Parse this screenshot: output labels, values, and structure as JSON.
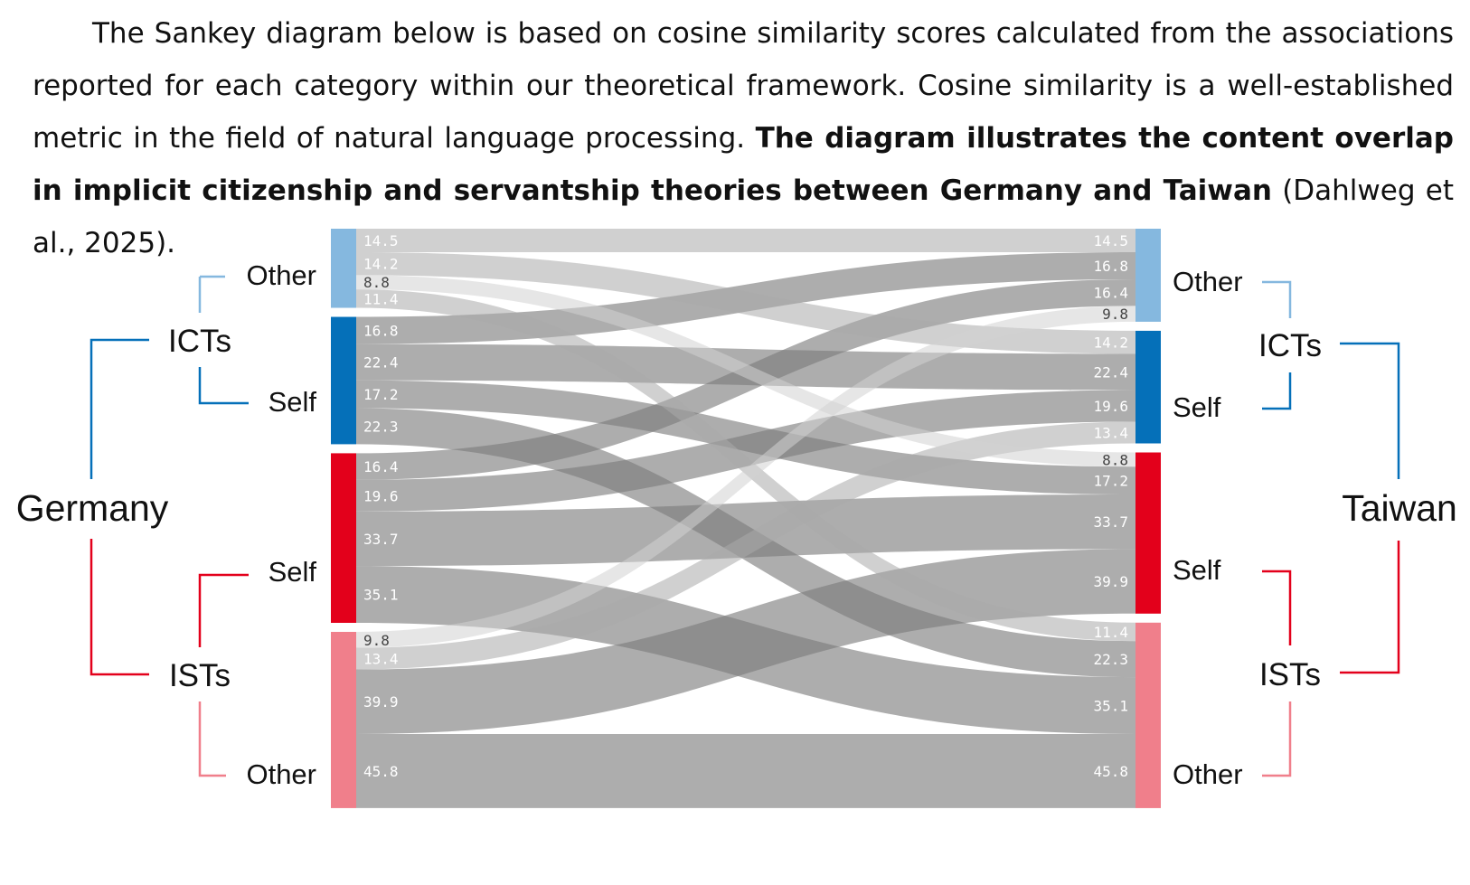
{
  "intro": {
    "part1": "The Sankey diagram below is based on cosine similarity scores calculated from the associations reported for each category within our theoretical framework. Cosine similarity is a well-established metric in the field of natural language processing. ",
    "bold": "The diagram illustrates the content overlap in implicit citizenship and servantship theories between Germany and Taiwan",
    "part2": " (Dahlweg et al., 2025)."
  },
  "diagram": {
    "left_country": "Germany",
    "right_country": "Taiwan",
    "labels": {
      "icts": "ICTs",
      "ists": "ISTs",
      "self": "Self",
      "other": "Other"
    },
    "colors": {
      "icts_other": "#85b8df",
      "icts_self": "#0570b9",
      "ists_self": "#e3001b",
      "ists_other": "#f07f8b"
    },
    "nodes": [
      "ICTs Other",
      "ICTs Self",
      "ISTs Self",
      "ISTs Other"
    ],
    "flows": [
      {
        "from": 0,
        "to": 0,
        "value": 14.5
      },
      {
        "from": 0,
        "to": 1,
        "value": 14.2
      },
      {
        "from": 0,
        "to": 2,
        "value": 8.8
      },
      {
        "from": 0,
        "to": 3,
        "value": 11.4
      },
      {
        "from": 1,
        "to": 0,
        "value": 16.8
      },
      {
        "from": 1,
        "to": 1,
        "value": 22.4
      },
      {
        "from": 1,
        "to": 2,
        "value": 17.2
      },
      {
        "from": 1,
        "to": 3,
        "value": 22.3
      },
      {
        "from": 2,
        "to": 0,
        "value": 16.4
      },
      {
        "from": 2,
        "to": 1,
        "value": 19.6
      },
      {
        "from": 2,
        "to": 2,
        "value": 33.7
      },
      {
        "from": 2,
        "to": 3,
        "value": 35.1
      },
      {
        "from": 3,
        "to": 0,
        "value": 9.8
      },
      {
        "from": 3,
        "to": 1,
        "value": 13.4
      },
      {
        "from": 3,
        "to": 2,
        "value": 39.9
      },
      {
        "from": 3,
        "to": 3,
        "value": 45.8
      }
    ]
  }
}
